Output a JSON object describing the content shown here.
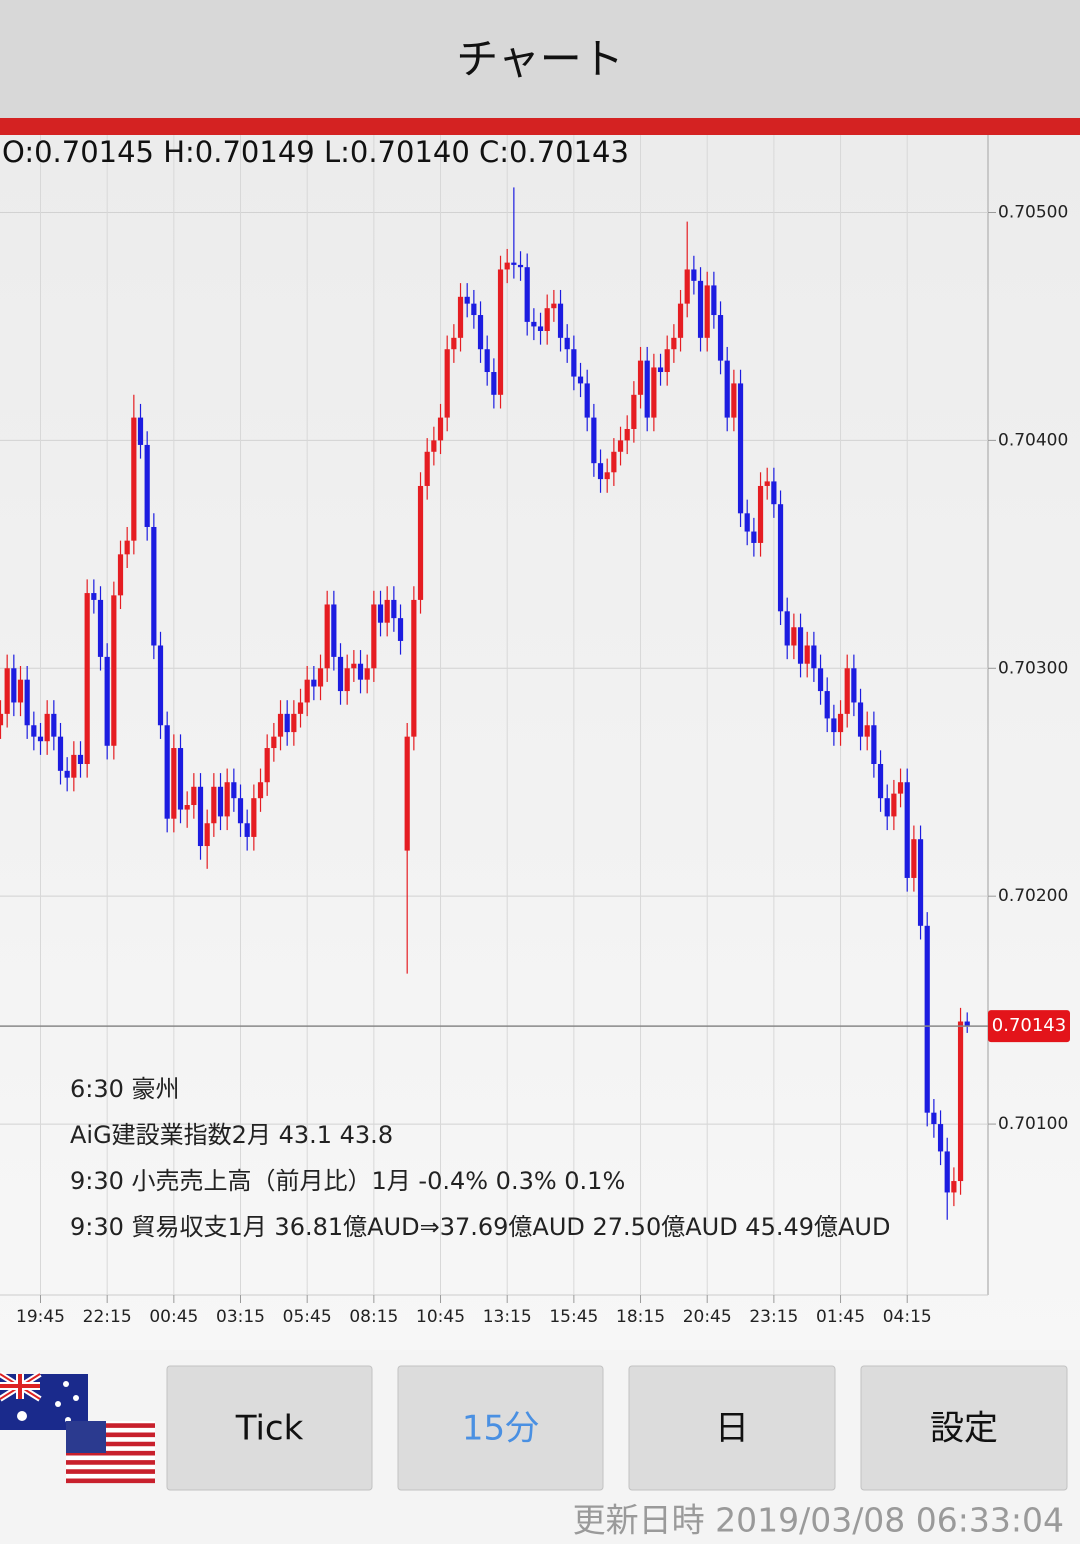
{
  "header": {
    "title": "チャート"
  },
  "info": {
    "ohlc_text": "O:0.70145 H:0.70149 L:0.70140 C:0.70143"
  },
  "events": [
    "6:30 豪州",
    "AiG建設業指数2月 43.1 43.8",
    "9:30 小売売上高（前月比）1月 -0.4% 0.3% 0.1%",
    "9:30 貿易収支1月 36.81億AUD⇒37.69億AUD 27.50億AUD 45.49億AUD"
  ],
  "buttons": [
    "Tick",
    "15分",
    "日",
    "設定"
  ],
  "updated": "更新日時 2019/03/08 06:33:04",
  "chart_data": {
    "type": "candlestick",
    "up_color": "#e51d22",
    "down_color": "#1c1ce0",
    "grid": true,
    "ylim": [
      0.70025,
      0.70534
    ],
    "yticks": [
      {
        "value": 0.705,
        "label": "0.70500"
      },
      {
        "value": 0.704,
        "label": "0.70400"
      },
      {
        "value": 0.703,
        "label": "0.70300"
      },
      {
        "value": 0.702,
        "label": "0.70200"
      },
      {
        "value": 0.701,
        "label": "0.70100"
      }
    ],
    "last_price": {
      "value": 0.70143,
      "label": "0.70143"
    },
    "categories": [
      null,
      null,
      null,
      null,
      null,
      null,
      "19:45",
      null,
      null,
      null,
      null,
      null,
      null,
      null,
      null,
      null,
      "22:15",
      null,
      null,
      null,
      null,
      null,
      null,
      null,
      null,
      null,
      "00:45",
      null,
      null,
      null,
      null,
      null,
      null,
      null,
      null,
      null,
      "03:15",
      null,
      null,
      null,
      null,
      null,
      null,
      null,
      null,
      null,
      "05:45",
      null,
      null,
      null,
      null,
      null,
      null,
      null,
      null,
      null,
      "08:15",
      null,
      null,
      null,
      null,
      null,
      null,
      null,
      null,
      null,
      "10:45",
      null,
      null,
      null,
      null,
      null,
      null,
      null,
      null,
      null,
      "13:15",
      null,
      null,
      null,
      null,
      null,
      null,
      null,
      null,
      null,
      "15:45",
      null,
      null,
      null,
      null,
      null,
      null,
      null,
      null,
      null,
      "18:15",
      null,
      null,
      null,
      null,
      null,
      null,
      null,
      null,
      null,
      "20:45",
      null,
      null,
      null,
      null,
      null,
      null,
      null,
      null,
      null,
      "23:15",
      null,
      null,
      null,
      null,
      null,
      null,
      null,
      null,
      null,
      "01:45",
      null,
      null,
      null,
      null,
      null,
      null,
      null,
      null,
      null,
      "04:15",
      null,
      null,
      null,
      null,
      null,
      null,
      null,
      null,
      null
    ],
    "ohlc": [
      [
        0.70275,
        0.70286,
        0.70269,
        0.7028
      ],
      [
        0.7028,
        0.70306,
        0.70274,
        0.703
      ],
      [
        0.703,
        0.70306,
        0.70279,
        0.70285
      ],
      [
        0.70285,
        0.70301,
        0.70279,
        0.70295
      ],
      [
        0.70295,
        0.70301,
        0.70269,
        0.70275
      ],
      [
        0.70275,
        0.70281,
        0.70264,
        0.7027
      ],
      [
        0.7027,
        0.70276,
        0.70262,
        0.70268
      ],
      [
        0.70268,
        0.70286,
        0.70262,
        0.7028
      ],
      [
        0.7028,
        0.70286,
        0.70264,
        0.7027
      ],
      [
        0.7027,
        0.70276,
        0.70249,
        0.70255
      ],
      [
        0.70255,
        0.70261,
        0.70246,
        0.70252
      ],
      [
        0.70252,
        0.70268,
        0.70246,
        0.70262
      ],
      [
        0.70262,
        0.70268,
        0.70252,
        0.70258
      ],
      [
        0.70258,
        0.70339,
        0.70252,
        0.70333
      ],
      [
        0.70333,
        0.70339,
        0.70324,
        0.7033
      ],
      [
        0.7033,
        0.70336,
        0.70299,
        0.70305
      ],
      [
        0.70305,
        0.70311,
        0.7026,
        0.70266
      ],
      [
        0.70266,
        0.70338,
        0.7026,
        0.70332
      ],
      [
        0.70332,
        0.70356,
        0.70326,
        0.7035
      ],
      [
        0.7035,
        0.70362,
        0.70344,
        0.70356
      ],
      [
        0.70356,
        0.7042,
        0.7035,
        0.7041
      ],
      [
        0.7041,
        0.70416,
        0.70392,
        0.70398
      ],
      [
        0.70398,
        0.70404,
        0.70356,
        0.70362
      ],
      [
        0.70362,
        0.70368,
        0.70304,
        0.7031
      ],
      [
        0.7031,
        0.70316,
        0.70269,
        0.70275
      ],
      [
        0.70275,
        0.70281,
        0.70228,
        0.70234
      ],
      [
        0.70234,
        0.70271,
        0.70228,
        0.70265
      ],
      [
        0.70265,
        0.70271,
        0.70232,
        0.70238
      ],
      [
        0.70238,
        0.70246,
        0.7023,
        0.7024
      ],
      [
        0.7024,
        0.70254,
        0.70234,
        0.70248
      ],
      [
        0.70248,
        0.70254,
        0.70216,
        0.70222
      ],
      [
        0.70222,
        0.70238,
        0.70212,
        0.70232
      ],
      [
        0.70232,
        0.70254,
        0.70226,
        0.70248
      ],
      [
        0.70248,
        0.70254,
        0.70229,
        0.70235
      ],
      [
        0.70235,
        0.70256,
        0.70229,
        0.7025
      ],
      [
        0.7025,
        0.70256,
        0.70237,
        0.70243
      ],
      [
        0.70243,
        0.70249,
        0.70226,
        0.70232
      ],
      [
        0.70232,
        0.70238,
        0.7022,
        0.70226
      ],
      [
        0.70226,
        0.70249,
        0.7022,
        0.70243
      ],
      [
        0.70243,
        0.70256,
        0.70237,
        0.7025
      ],
      [
        0.7025,
        0.70271,
        0.70244,
        0.70265
      ],
      [
        0.70265,
        0.70276,
        0.70259,
        0.7027
      ],
      [
        0.7027,
        0.70286,
        0.70264,
        0.7028
      ],
      [
        0.7028,
        0.70286,
        0.70266,
        0.70272
      ],
      [
        0.70272,
        0.70286,
        0.70266,
        0.7028
      ],
      [
        0.7028,
        0.70291,
        0.70274,
        0.70285
      ],
      [
        0.70285,
        0.70301,
        0.70279,
        0.70295
      ],
      [
        0.70295,
        0.70301,
        0.70286,
        0.70292
      ],
      [
        0.70292,
        0.70306,
        0.70286,
        0.703
      ],
      [
        0.703,
        0.70334,
        0.70294,
        0.70328
      ],
      [
        0.70328,
        0.70334,
        0.70299,
        0.70305
      ],
      [
        0.70305,
        0.70311,
        0.70284,
        0.7029
      ],
      [
        0.7029,
        0.70306,
        0.70284,
        0.703
      ],
      [
        0.703,
        0.70308,
        0.70294,
        0.70302
      ],
      [
        0.70302,
        0.70308,
        0.70289,
        0.70295
      ],
      [
        0.70295,
        0.70306,
        0.70289,
        0.703
      ],
      [
        0.703,
        0.70334,
        0.70294,
        0.70328
      ],
      [
        0.70328,
        0.70334,
        0.70314,
        0.7032
      ],
      [
        0.7032,
        0.70336,
        0.70314,
        0.7033
      ],
      [
        0.7033,
        0.70336,
        0.70316,
        0.70322
      ],
      [
        0.70322,
        0.70328,
        0.70306,
        0.70312
      ],
      [
        0.7022,
        0.70276,
        0.70166,
        0.7027
      ],
      [
        0.7027,
        0.70336,
        0.70264,
        0.7033
      ],
      [
        0.7033,
        0.70386,
        0.70324,
        0.7038
      ],
      [
        0.7038,
        0.70401,
        0.70374,
        0.70395
      ],
      [
        0.70395,
        0.70406,
        0.70389,
        0.704
      ],
      [
        0.704,
        0.70416,
        0.70394,
        0.7041
      ],
      [
        0.7041,
        0.70446,
        0.70404,
        0.7044
      ],
      [
        0.7044,
        0.70451,
        0.70434,
        0.70445
      ],
      [
        0.70445,
        0.70469,
        0.70439,
        0.70463
      ],
      [
        0.70463,
        0.70469,
        0.70454,
        0.7046
      ],
      [
        0.7046,
        0.70466,
        0.70449,
        0.70455
      ],
      [
        0.70455,
        0.70461,
        0.70434,
        0.7044
      ],
      [
        0.7044,
        0.70446,
        0.70424,
        0.7043
      ],
      [
        0.7043,
        0.70436,
        0.70414,
        0.7042
      ],
      [
        0.7042,
        0.70481,
        0.70414,
        0.70475
      ],
      [
        0.70475,
        0.70484,
        0.70469,
        0.70478
      ],
      [
        0.70478,
        0.70511,
        0.70471,
        0.70477
      ],
      [
        0.70477,
        0.70483,
        0.7047,
        0.70476
      ],
      [
        0.70476,
        0.70482,
        0.70446,
        0.70452
      ],
      [
        0.70452,
        0.70458,
        0.70444,
        0.7045
      ],
      [
        0.7045,
        0.70456,
        0.70442,
        0.70448
      ],
      [
        0.70448,
        0.70464,
        0.70442,
        0.70458
      ],
      [
        0.70458,
        0.70466,
        0.70452,
        0.7046
      ],
      [
        0.7046,
        0.70466,
        0.70439,
        0.70445
      ],
      [
        0.70445,
        0.70451,
        0.70434,
        0.7044
      ],
      [
        0.7044,
        0.70446,
        0.70422,
        0.70428
      ],
      [
        0.70428,
        0.70434,
        0.70419,
        0.70425
      ],
      [
        0.70425,
        0.70431,
        0.70404,
        0.7041
      ],
      [
        0.7041,
        0.70416,
        0.70384,
        0.7039
      ],
      [
        0.7039,
        0.70396,
        0.70377,
        0.70383
      ],
      [
        0.70383,
        0.70392,
        0.70377,
        0.70386
      ],
      [
        0.70386,
        0.70401,
        0.7038,
        0.70395
      ],
      [
        0.70395,
        0.70406,
        0.70389,
        0.704
      ],
      [
        0.704,
        0.70411,
        0.70394,
        0.70405
      ],
      [
        0.70405,
        0.70426,
        0.70399,
        0.7042
      ],
      [
        0.7042,
        0.70441,
        0.70414,
        0.70435
      ],
      [
        0.70435,
        0.70441,
        0.70404,
        0.7041
      ],
      [
        0.7041,
        0.70438,
        0.70404,
        0.70432
      ],
      [
        0.70432,
        0.70438,
        0.70424,
        0.7043
      ],
      [
        0.7043,
        0.70446,
        0.70424,
        0.7044
      ],
      [
        0.7044,
        0.70451,
        0.70434,
        0.70445
      ],
      [
        0.70445,
        0.70466,
        0.70439,
        0.7046
      ],
      [
        0.7046,
        0.70496,
        0.70454,
        0.70475
      ],
      [
        0.70475,
        0.70481,
        0.70464,
        0.7047
      ],
      [
        0.7047,
        0.70476,
        0.70439,
        0.70445
      ],
      [
        0.70445,
        0.70474,
        0.70439,
        0.70468
      ],
      [
        0.70468,
        0.70474,
        0.70449,
        0.70455
      ],
      [
        0.70455,
        0.70461,
        0.70429,
        0.70435
      ],
      [
        0.70435,
        0.70441,
        0.70404,
        0.7041
      ],
      [
        0.7041,
        0.70431,
        0.70404,
        0.70425
      ],
      [
        0.70425,
        0.70431,
        0.70362,
        0.70368
      ],
      [
        0.70368,
        0.70374,
        0.70354,
        0.7036
      ],
      [
        0.7036,
        0.70366,
        0.70349,
        0.70355
      ],
      [
        0.70355,
        0.70386,
        0.70349,
        0.7038
      ],
      [
        0.7038,
        0.70388,
        0.70374,
        0.70382
      ],
      [
        0.70382,
        0.70388,
        0.70366,
        0.70372
      ],
      [
        0.70372,
        0.70378,
        0.70319,
        0.70325
      ],
      [
        0.70325,
        0.70331,
        0.70304,
        0.7031
      ],
      [
        0.7031,
        0.70324,
        0.70304,
        0.70318
      ],
      [
        0.70318,
        0.70324,
        0.70296,
        0.70302
      ],
      [
        0.70302,
        0.70316,
        0.70296,
        0.7031
      ],
      [
        0.7031,
        0.70316,
        0.70294,
        0.703
      ],
      [
        0.703,
        0.70306,
        0.70284,
        0.7029
      ],
      [
        0.7029,
        0.70296,
        0.70272,
        0.70278
      ],
      [
        0.70278,
        0.70284,
        0.70266,
        0.70272
      ],
      [
        0.70272,
        0.70286,
        0.70266,
        0.7028
      ],
      [
        0.7028,
        0.70306,
        0.70274,
        0.703
      ],
      [
        0.703,
        0.70306,
        0.70279,
        0.70285
      ],
      [
        0.70285,
        0.70291,
        0.70264,
        0.7027
      ],
      [
        0.7027,
        0.70281,
        0.70264,
        0.70275
      ],
      [
        0.70275,
        0.70281,
        0.70252,
        0.70258
      ],
      [
        0.70258,
        0.70264,
        0.70237,
        0.70243
      ],
      [
        0.70243,
        0.70249,
        0.70229,
        0.70235
      ],
      [
        0.70235,
        0.70251,
        0.70229,
        0.70245
      ],
      [
        0.70245,
        0.70256,
        0.70239,
        0.7025
      ],
      [
        0.7025,
        0.70256,
        0.70202,
        0.70208
      ],
      [
        0.70208,
        0.70231,
        0.70202,
        0.70225
      ],
      [
        0.70225,
        0.70231,
        0.70181,
        0.70187
      ],
      [
        0.70187,
        0.70193,
        0.70099,
        0.70105
      ],
      [
        0.70105,
        0.70111,
        0.70094,
        0.701
      ],
      [
        0.701,
        0.70106,
        0.70082,
        0.70088
      ],
      [
        0.70088,
        0.70094,
        0.70058,
        0.7007
      ],
      [
        0.7007,
        0.70081,
        0.70064,
        0.70075
      ],
      [
        0.70075,
        0.70151,
        0.70069,
        0.70145
      ],
      [
        0.70145,
        0.70149,
        0.7014,
        0.70143
      ]
    ]
  }
}
